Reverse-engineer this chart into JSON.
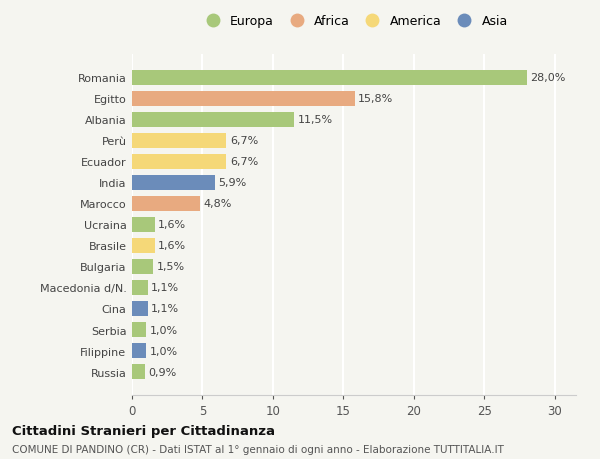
{
  "countries": [
    "Romania",
    "Egitto",
    "Albania",
    "Perù",
    "Ecuador",
    "India",
    "Marocco",
    "Ucraina",
    "Brasile",
    "Bulgaria",
    "Macedonia d/N.",
    "Cina",
    "Serbia",
    "Filippine",
    "Russia"
  ],
  "values": [
    28.0,
    15.8,
    11.5,
    6.7,
    6.7,
    5.9,
    4.8,
    1.6,
    1.6,
    1.5,
    1.1,
    1.1,
    1.0,
    1.0,
    0.9
  ],
  "labels": [
    "28,0%",
    "15,8%",
    "11,5%",
    "6,7%",
    "6,7%",
    "5,9%",
    "4,8%",
    "1,6%",
    "1,6%",
    "1,5%",
    "1,1%",
    "1,1%",
    "1,0%",
    "1,0%",
    "0,9%"
  ],
  "continents": [
    "Europa",
    "Africa",
    "Europa",
    "America",
    "America",
    "Asia",
    "Africa",
    "Europa",
    "America",
    "Europa",
    "Europa",
    "Asia",
    "Europa",
    "Asia",
    "Europa"
  ],
  "colors": {
    "Europa": "#a8c87a",
    "Africa": "#e8aa80",
    "America": "#f5d878",
    "Asia": "#6b8cba"
  },
  "legend_order": [
    "Europa",
    "Africa",
    "America",
    "Asia"
  ],
  "title": "Cittadini Stranieri per Cittadinanza",
  "subtitle": "COMUNE DI PANDINO (CR) - Dati ISTAT al 1° gennaio di ogni anno - Elaborazione TUTTITALIA.IT",
  "xlim": [
    0,
    31.5
  ],
  "xticks": [
    0,
    5,
    10,
    15,
    20,
    25,
    30
  ],
  "background_color": "#f5f5f0",
  "grid_color": "#ffffff",
  "bar_height": 0.72,
  "label_fontsize": 8.0,
  "ytick_fontsize": 8.0,
  "xtick_fontsize": 8.5,
  "legend_fontsize": 9.0,
  "title_fontsize": 9.5,
  "subtitle_fontsize": 7.5
}
